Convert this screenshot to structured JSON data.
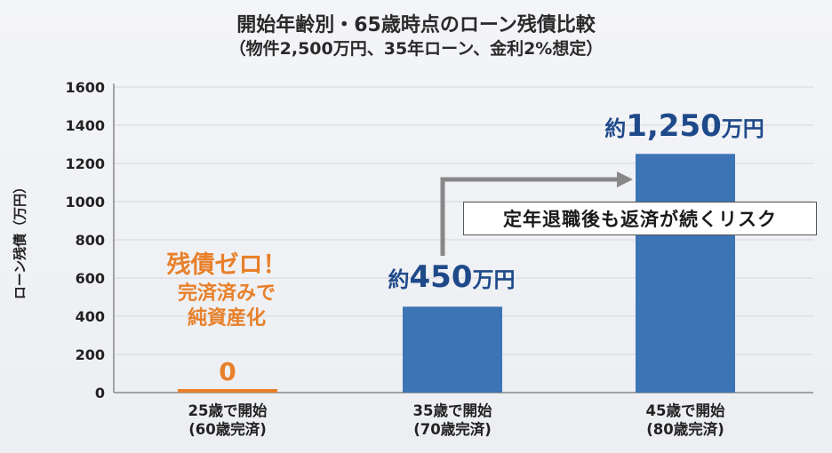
{
  "chart_data": {
    "type": "bar",
    "title": "開始年齢別・65歳時点のローン残債比較",
    "subtitle": "（物件2,500万円、35年ローン、金利2%想定）",
    "ylabel": "ローン残債（万円）",
    "ylim": [
      0,
      1600
    ],
    "yticks": [
      0,
      200,
      400,
      600,
      800,
      1000,
      1200,
      1400,
      1600
    ],
    "grid": true,
    "categories": [
      {
        "line1": "25歳で開始",
        "line2": "(60歳完済)"
      },
      {
        "line1": "35歳で開始",
        "line2": "(70歳完済)"
      },
      {
        "line1": "45歳で開始",
        "line2": "(80歳完済)"
      }
    ],
    "values": [
      0,
      450,
      1250
    ],
    "colors": {
      "bar": "#3d74b5",
      "zero_bar": "#e8802a",
      "axis": "#888888",
      "grid": "#d4d7de",
      "arrow": "#888888"
    },
    "data_labels": [
      {
        "value_text": "0"
      },
      {
        "prefix": "約",
        "number": "450",
        "unit": "万円"
      },
      {
        "prefix": "約",
        "number": "1,250",
        "unit": "万円"
      }
    ],
    "annotations": {
      "zero_note": [
        "残債ゼロ！",
        "完済済みで",
        "純資産化"
      ],
      "risk_note": "定年退職後も返済が続くリスク"
    }
  }
}
